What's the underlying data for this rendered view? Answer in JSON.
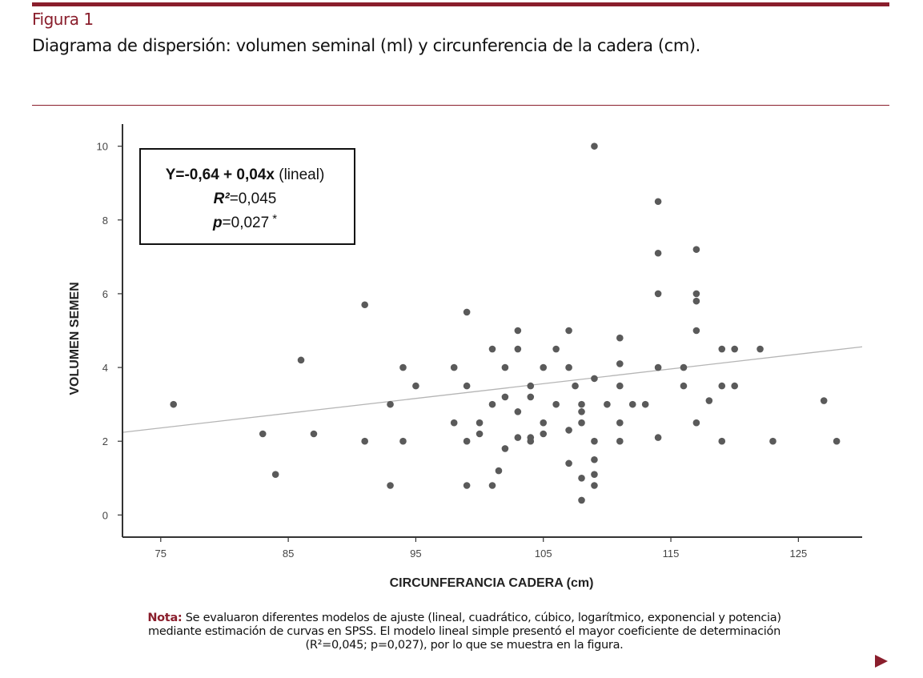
{
  "figure": {
    "label": "Figura 1",
    "title": "Diagrama de dispersión: volumen seminal (ml) y circunferencia de la cadera (cm)."
  },
  "note": {
    "lead": "Nota:",
    "line1": " Se evaluaron diferentes modelos de ajuste (lineal, cuadrático, cúbico, logarítmico, exponencial y potencia)",
    "line2": "mediante estimación de curvas en SPSS. El modelo lineal simple presentó el mayor coeficiente de determinación",
    "line3": "(R²=0,045; p=0,027), por lo que se muestra en la figura."
  },
  "colors": {
    "accent": "#8a1e2c",
    "point": "#5a5a5a",
    "fit": "#b5b5b5",
    "axis": "#333333"
  },
  "chart_data": {
    "type": "scatter",
    "xlabel": "CIRCUNFERANCIA CADERA (cm)",
    "ylabel": "VOLUMEN SEMEN",
    "xlim": [
      72,
      130
    ],
    "ylim": [
      -0.6,
      10.6
    ],
    "xticks": [
      75,
      85,
      95,
      105,
      115,
      125
    ],
    "yticks": [
      0,
      2,
      4,
      6,
      8,
      10
    ],
    "annotation": {
      "line1_bold": "Y=-0,64 + 0,04x",
      "line1_rest": " (lineal)",
      "line2_label": "R²",
      "line2_value": "=0,045",
      "line3_label": "p",
      "line3_value": "=0,027",
      "line3_mark": "*"
    },
    "fit_line": {
      "intercept": -0.64,
      "slope": 0.04,
      "x_range": [
        72,
        130
      ]
    },
    "points": [
      [
        76,
        3.0
      ],
      [
        83,
        2.2
      ],
      [
        84,
        1.1
      ],
      [
        86,
        4.2
      ],
      [
        87,
        2.2
      ],
      [
        91,
        5.7
      ],
      [
        91,
        2.0
      ],
      [
        93,
        3.0
      ],
      [
        93,
        0.8
      ],
      [
        94,
        4.0
      ],
      [
        94,
        2.0
      ],
      [
        95,
        3.5
      ],
      [
        98,
        4.0
      ],
      [
        98,
        2.5
      ],
      [
        99,
        5.5
      ],
      [
        99,
        3.5
      ],
      [
        99,
        2.0
      ],
      [
        99,
        0.8
      ],
      [
        100,
        2.5
      ],
      [
        100,
        2.2
      ],
      [
        101,
        4.5
      ],
      [
        101,
        3.0
      ],
      [
        101,
        0.8
      ],
      [
        101.5,
        1.2
      ],
      [
        102,
        4.0
      ],
      [
        102,
        3.2
      ],
      [
        102,
        1.8
      ],
      [
        103,
        5.0
      ],
      [
        103,
        4.5
      ],
      [
        103,
        2.8
      ],
      [
        103,
        2.1
      ],
      [
        104,
        3.5
      ],
      [
        104,
        3.2
      ],
      [
        104,
        2.1
      ],
      [
        104,
        2.0
      ],
      [
        105,
        4.0
      ],
      [
        105,
        2.5
      ],
      [
        105,
        2.2
      ],
      [
        106,
        4.5
      ],
      [
        106,
        3.0
      ],
      [
        107,
        5.0
      ],
      [
        107,
        4.0
      ],
      [
        107,
        2.3
      ],
      [
        107,
        1.4
      ],
      [
        107.5,
        3.5
      ],
      [
        108,
        3.0
      ],
      [
        108,
        2.8
      ],
      [
        108,
        2.5
      ],
      [
        108,
        1.0
      ],
      [
        108,
        0.4
      ],
      [
        109,
        10.0
      ],
      [
        109,
        3.7
      ],
      [
        109,
        2.0
      ],
      [
        109,
        1.5
      ],
      [
        109,
        1.1
      ],
      [
        109,
        0.8
      ],
      [
        110,
        3.0
      ],
      [
        111,
        4.8
      ],
      [
        111,
        4.1
      ],
      [
        111,
        3.5
      ],
      [
        111,
        2.5
      ],
      [
        111,
        2.0
      ],
      [
        112,
        3.0
      ],
      [
        113,
        3.0
      ],
      [
        114,
        8.5
      ],
      [
        114,
        7.1
      ],
      [
        114,
        6.0
      ],
      [
        114,
        4.0
      ],
      [
        114,
        2.1
      ],
      [
        116,
        4.0
      ],
      [
        116,
        3.5
      ],
      [
        117,
        7.2
      ],
      [
        117,
        6.0
      ],
      [
        117,
        5.8
      ],
      [
        117,
        5.0
      ],
      [
        117,
        2.5
      ],
      [
        118,
        3.1
      ],
      [
        119,
        4.5
      ],
      [
        119,
        3.5
      ],
      [
        119,
        2.0
      ],
      [
        120,
        4.5
      ],
      [
        120,
        3.5
      ],
      [
        122,
        4.5
      ],
      [
        123,
        2.0
      ],
      [
        127,
        3.1
      ],
      [
        128,
        2.0
      ]
    ]
  }
}
